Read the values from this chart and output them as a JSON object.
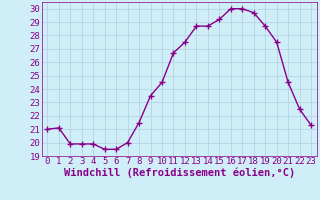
{
  "x": [
    0,
    1,
    2,
    3,
    4,
    5,
    6,
    7,
    8,
    9,
    10,
    11,
    12,
    13,
    14,
    15,
    16,
    17,
    18,
    19,
    20,
    21,
    22,
    23
  ],
  "y": [
    21.0,
    21.1,
    19.9,
    19.9,
    19.9,
    19.5,
    19.5,
    20.0,
    21.5,
    23.5,
    24.5,
    26.7,
    27.5,
    28.7,
    28.7,
    29.2,
    30.0,
    30.0,
    29.7,
    28.7,
    27.5,
    24.5,
    22.5,
    21.3
  ],
  "line_color": "#880088",
  "marker": "+",
  "marker_size": 4,
  "xlabel": "Windchill (Refroidissement éolien,°C)",
  "xlabel_fontsize": 7.5,
  "ylim": [
    19,
    30.5
  ],
  "xlim": [
    -0.5,
    23.5
  ],
  "yticks": [
    19,
    20,
    21,
    22,
    23,
    24,
    25,
    26,
    27,
    28,
    29,
    30
  ],
  "xticks": [
    0,
    1,
    2,
    3,
    4,
    5,
    6,
    7,
    8,
    9,
    10,
    11,
    12,
    13,
    14,
    15,
    16,
    17,
    18,
    19,
    20,
    21,
    22,
    23
  ],
  "background_color": "#d0eef8",
  "grid_color": "#b8d8e8",
  "tick_label_fontsize": 6.5,
  "line_width": 1.0,
  "marker_edge_width": 1.0
}
